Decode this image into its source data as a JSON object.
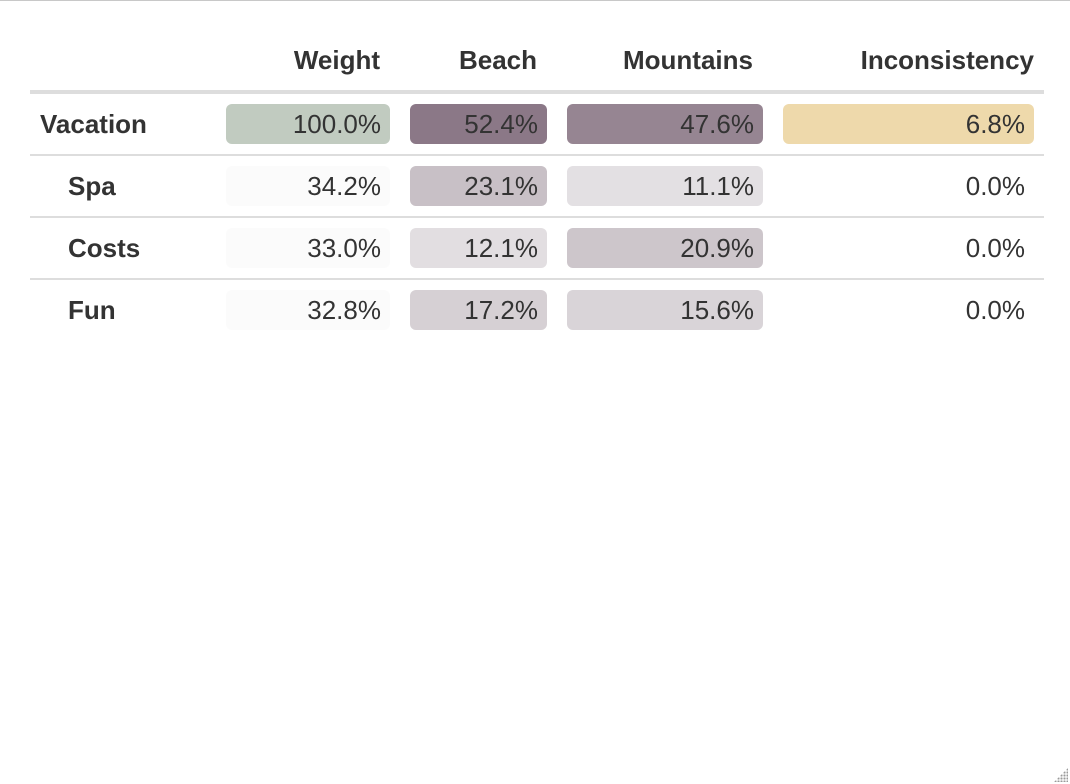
{
  "columns": {
    "weight": "Weight",
    "beach": "Beach",
    "mountains": "Mountains",
    "inconsistency": "Inconsistency"
  },
  "rows": [
    {
      "name": "Vacation",
      "weight": "100.0%",
      "beach": "52.4%",
      "mountains": "47.6%",
      "inconsistency": "6.8%",
      "colors": {
        "weight": "#c1cbc0",
        "beach": "#8b7887",
        "mountains": "#968592",
        "inconsistency": "#eed9ab"
      }
    },
    {
      "name": "Spa",
      "weight": "34.2%",
      "beach": "23.1%",
      "mountains": "11.1%",
      "inconsistency": "0.0%",
      "colors": {
        "weight": "#fbfbfb",
        "beach": "#c8c0c6",
        "mountains": "#e3e0e3",
        "inconsistency": "#ffffff"
      }
    },
    {
      "name": "Costs",
      "weight": "33.0%",
      "beach": "12.1%",
      "mountains": "20.9%",
      "inconsistency": "0.0%",
      "colors": {
        "weight": "#fbfbfb",
        "beach": "#e2dee1",
        "mountains": "#cdc6cb",
        "inconsistency": "#ffffff"
      }
    },
    {
      "name": "Fun",
      "weight": "32.8%",
      "beach": "17.2%",
      "mountains": "15.6%",
      "inconsistency": "0.0%",
      "colors": {
        "weight": "#fbfbfb",
        "beach": "#d6d0d4",
        "mountains": "#d9d4d8",
        "inconsistency": "#ffffff"
      }
    }
  ]
}
